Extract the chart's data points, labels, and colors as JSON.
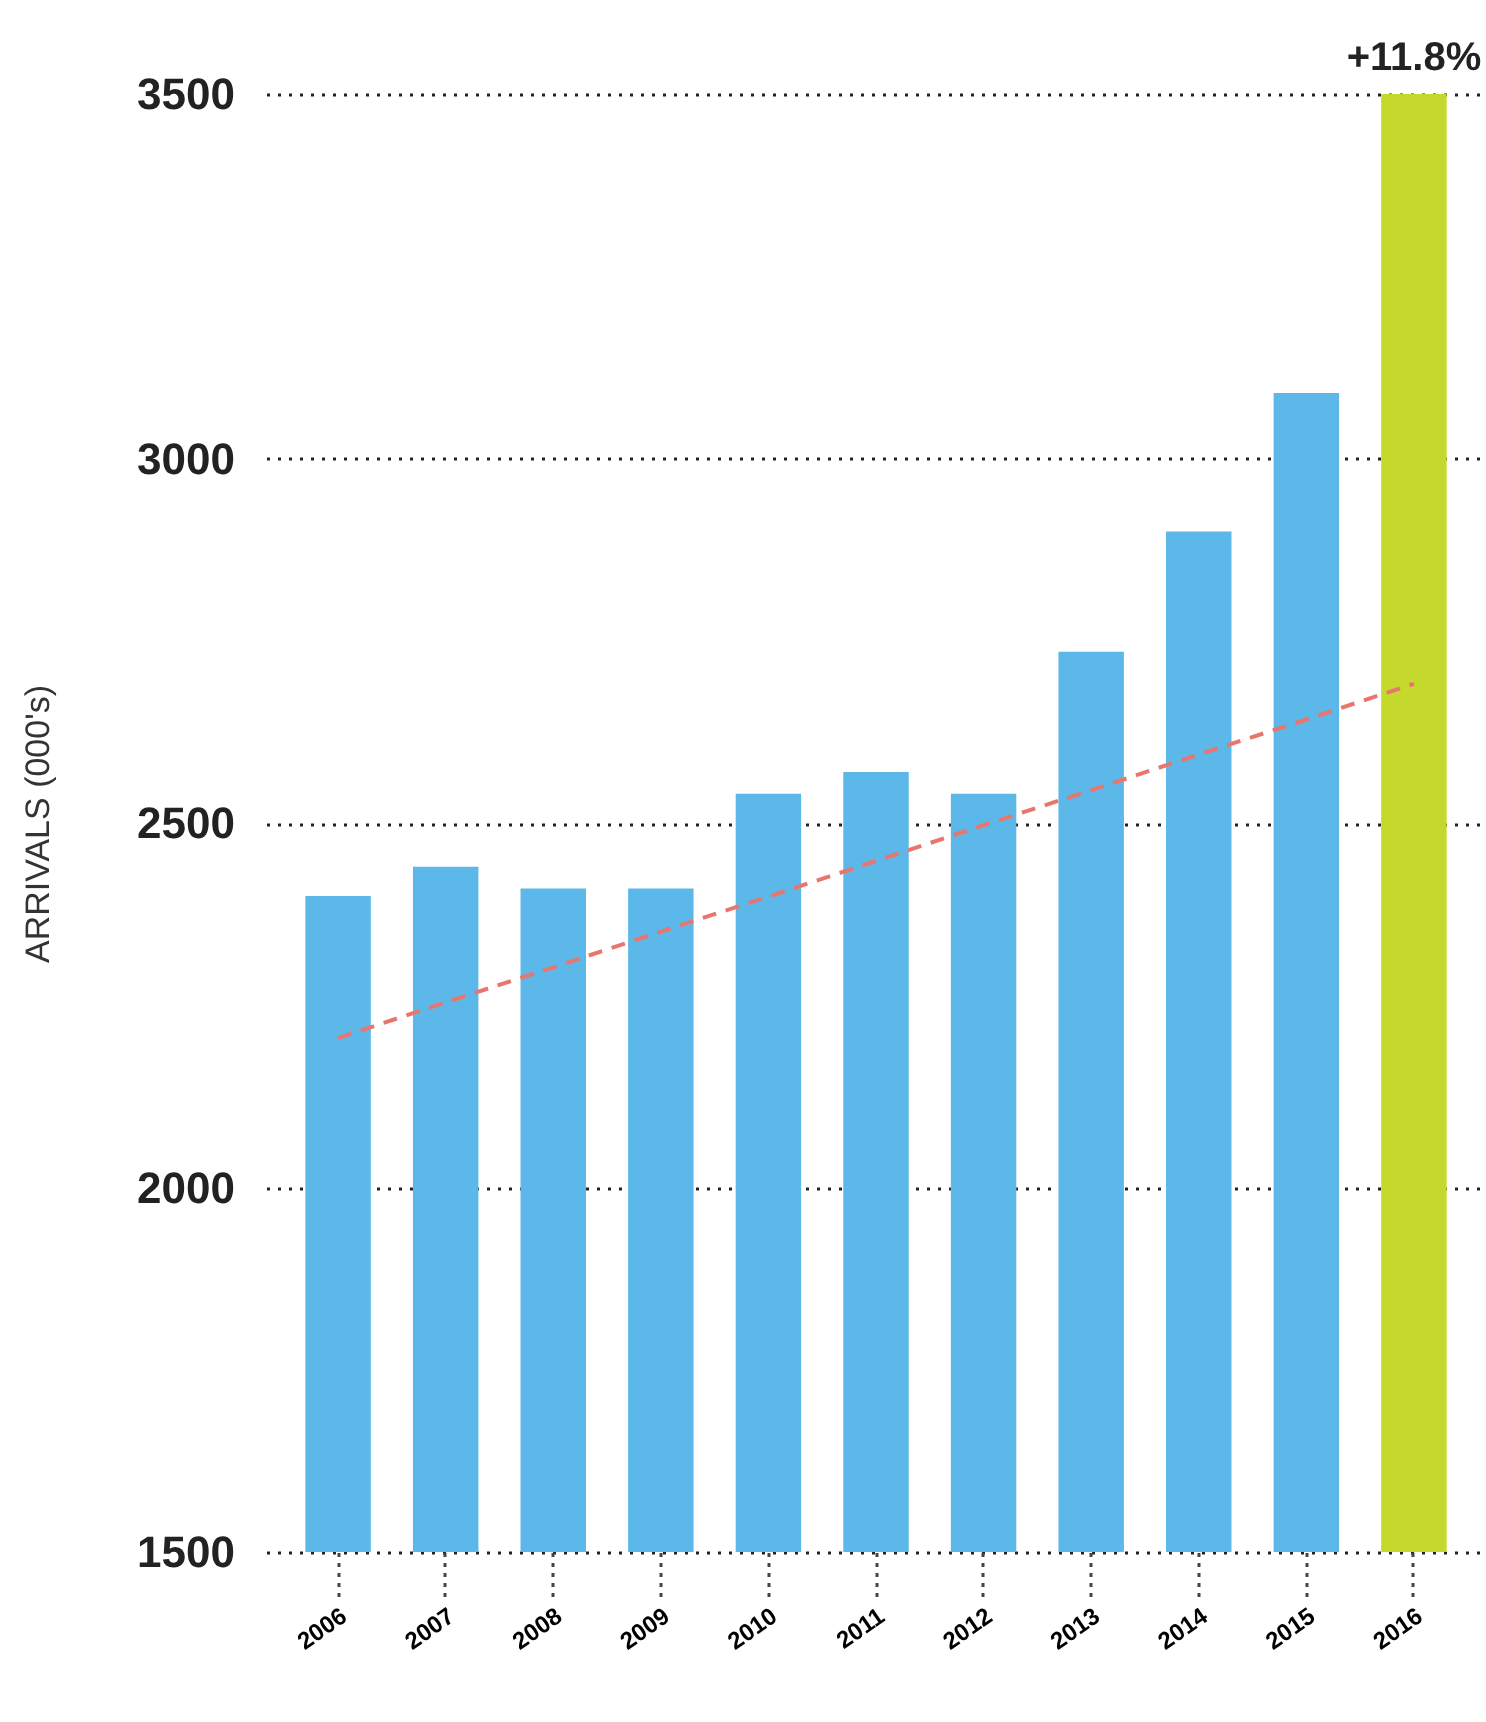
{
  "chart_data": {
    "type": "bar",
    "ylabel": "ARRIVALS (000's)",
    "categories": [
      "2006",
      "2007",
      "2008",
      "2009",
      "2010",
      "2011",
      "2012",
      "2013",
      "2014",
      "2015",
      "2016"
    ],
    "series": [
      {
        "type": "bar",
        "colors": [
          "#5bb8e8",
          "#5bb8e8",
          "#5bb8e8",
          "#5bb8e8",
          "#5bb8e8",
          "#5bb8e8",
          "#5bb8e8",
          "#5bb8e8",
          "#5bb8e8",
          "#5bb8e8",
          "#c5d92d"
        ],
        "values": [
          2400,
          2440,
          2410,
          2410,
          2540,
          2570,
          2540,
          2735,
          2900,
          3090,
          3500
        ]
      },
      {
        "type": "line",
        "color": "#e8766e",
        "line_style": "dashed",
        "values": [
          2205,
          2254,
          2302,
          2351,
          2399,
          2448,
          2497,
          2545,
          2594,
          2642,
          2691
        ]
      }
    ],
    "annotations": [
      {
        "text": "+11.8%",
        "x": "2016",
        "y": 3500
      }
    ],
    "ylim": [
      1500,
      3500
    ],
    "yticks": [
      1500,
      2000,
      2500,
      3000,
      3500
    ],
    "grid": "y"
  }
}
